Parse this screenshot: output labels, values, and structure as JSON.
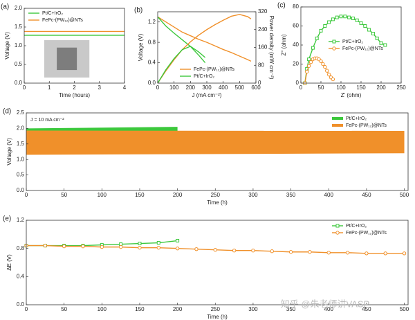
{
  "chart_data": [
    {
      "type": "line",
      "panel_label": "(a)",
      "xlabel": "Time (hours)",
      "ylabel": "Voltage (V)",
      "xlim": [
        0,
        4
      ],
      "xticks": [
        0,
        1,
        2,
        3,
        4
      ],
      "ylim": [
        0,
        2
      ],
      "yticks": [
        {
          "value": 0,
          "label": "0.0"
        },
        0.5,
        {
          "value": 1,
          "label": "1.0"
        },
        1.5,
        {
          "value": 2,
          "label": "2.0"
        }
      ],
      "legend": "upper left",
      "series": [
        {
          "name": "Pt/C+IrO₂",
          "color": "#3cc83c",
          "x": [
            0,
            1,
            2,
            3,
            4
          ],
          "values": [
            1.28,
            1.28,
            1.28,
            1.28,
            1.28
          ]
        },
        {
          "name": "FePc-(PW₁₂)@NTs",
          "color": "#f0902a",
          "x": [
            0,
            1,
            2,
            3,
            4
          ],
          "values": [
            1.38,
            1.38,
            1.38,
            1.38,
            1.38
          ]
        }
      ]
    },
    {
      "type": "line",
      "panel_label": "(b)",
      "xlabel": "J (mA cm⁻²)",
      "ylabel": "Voltage (V)",
      "y2label": "Power density (mW cm⁻²)",
      "xlim": [
        0,
        600
      ],
      "xticks": [
        0,
        100,
        200,
        300,
        400,
        500,
        600
      ],
      "ylim": [
        0,
        1.4
      ],
      "yticks": [
        {
          "value": 0,
          "label": "0.0"
        },
        0.4,
        0.8,
        1.2
      ],
      "y2lim": [
        0,
        320
      ],
      "y2ticks": [
        0,
        80,
        160,
        240,
        320
      ],
      "legend": "lower right",
      "series": [
        {
          "name": "FePc-(PW₁₂)@NTs",
          "color": "#f0902a",
          "x": [
            0,
            50,
            100,
            150,
            200,
            250,
            300,
            350,
            400,
            450,
            500,
            550,
            570
          ],
          "values": [
            1.3,
            1.2,
            1.1,
            1.0,
            0.93,
            0.86,
            0.8,
            0.73,
            0.66,
            0.6,
            0.53,
            0.46,
            0.43
          ]
        },
        {
          "name": "Pt/C+IrO₂",
          "color": "#3cc83c",
          "x": [
            0,
            50,
            100,
            150,
            200,
            250,
            290
          ],
          "values": [
            1.3,
            1.12,
            0.98,
            0.85,
            0.72,
            0.55,
            0.4
          ]
        },
        {
          "color": "#f0902a",
          "axis": "y2",
          "x": [
            0,
            50,
            100,
            150,
            200,
            250,
            300,
            350,
            400,
            450,
            500,
            550,
            570
          ],
          "values": [
            0,
            55,
            105,
            150,
            185,
            215,
            240,
            262,
            282,
            300,
            308,
            298,
            288
          ]
        },
        {
          "color": "#3cc83c",
          "axis": "y2",
          "x": [
            0,
            50,
            100,
            150,
            200,
            250,
            290
          ],
          "values": [
            0,
            60,
            110,
            150,
            165,
            140,
            115
          ]
        }
      ]
    },
    {
      "type": "line",
      "panel_label": "(c)",
      "xlabel": "Z' (ohm)",
      "ylabel": "Z'' (ohm)",
      "xlim": [
        0,
        250
      ],
      "xticks": [
        0,
        50,
        100,
        150,
        200,
        250
      ],
      "ylim": [
        0,
        80
      ],
      "yticks": [
        0,
        20,
        40,
        60,
        80
      ],
      "legend": "center right",
      "series": [
        {
          "name": "Pt/C+IrO₂",
          "color": "#3cc83c",
          "marker": "square",
          "x": [
            10,
            15,
            20,
            30,
            40,
            50,
            60,
            70,
            80,
            90,
            100,
            110,
            120,
            130,
            140,
            150,
            160,
            170,
            180,
            190,
            200,
            210
          ],
          "values": [
            0,
            15,
            25,
            37,
            47,
            55,
            60,
            64,
            67,
            69,
            70,
            70,
            69,
            68,
            66,
            63,
            60,
            56,
            52,
            47,
            42,
            40
          ]
        },
        {
          "name": "FePc-(PW₁₂)@NTs",
          "color": "#f0902a",
          "marker": "circle",
          "x": [
            10,
            15,
            20,
            25,
            30,
            35,
            40,
            45,
            50,
            55,
            60,
            65,
            70,
            75,
            80
          ],
          "values": [
            0,
            12,
            18,
            22,
            25,
            26,
            26,
            25,
            23,
            20,
            17,
            13,
            9,
            6,
            4
          ]
        }
      ]
    },
    {
      "type": "band",
      "panel_label": "(d)",
      "xlabel": "Time (h)",
      "ylabel": "Voltage (V)",
      "annotation": "J = 10 mA cm⁻²",
      "xlim": [
        0,
        505
      ],
      "xticks": [
        0,
        50,
        100,
        150,
        200,
        250,
        300,
        350,
        400,
        450,
        500
      ],
      "ylim": [
        0,
        2.5
      ],
      "yticks": [
        {
          "value": 0,
          "label": "0.0"
        },
        0.5,
        {
          "value": 1,
          "label": "1.0"
        },
        1.5,
        {
          "value": 2,
          "label": "2.0"
        },
        2.5
      ],
      "legend": "upper right",
      "series": [
        {
          "name": "Pt/C+IrO₂",
          "color": "#3cc83c",
          "x": [
            0,
            200
          ],
          "high": [
            2.0,
            2.05
          ],
          "low": [
            1.2,
            1.2
          ]
        },
        {
          "name": "FePc-(PW₁₂)@NTs",
          "color": "#f0902a",
          "x": [
            0,
            500
          ],
          "high": [
            1.93,
            1.92
          ],
          "low": [
            1.15,
            1.2
          ]
        }
      ]
    },
    {
      "type": "line",
      "panel_label": "(e)",
      "xlabel": "Time (h)",
      "ylabel": "ΔE (V)",
      "xlim": [
        0,
        505
      ],
      "xticks": [
        0,
        50,
        100,
        150,
        200,
        250,
        300,
        350,
        400,
        450,
        500
      ],
      "ylim": [
        0,
        1.2
      ],
      "yticks": [
        {
          "value": 0,
          "label": "0.0"
        },
        0.4,
        0.8,
        1.2
      ],
      "legend": "upper right",
      "series": [
        {
          "name": "Pt/C+IrO₂",
          "color": "#3cc83c",
          "marker": "square",
          "x": [
            0,
            25,
            50,
            75,
            100,
            125,
            150,
            175,
            200
          ],
          "values": [
            0.84,
            0.84,
            0.84,
            0.84,
            0.85,
            0.86,
            0.87,
            0.88,
            0.91
          ]
        },
        {
          "name": "FePc-(PW₁₂)@NTs",
          "color": "#f0902a",
          "marker": "circle",
          "x": [
            0,
            25,
            50,
            75,
            100,
            125,
            150,
            175,
            200,
            225,
            250,
            275,
            300,
            325,
            350,
            375,
            400,
            425,
            450,
            475,
            500
          ],
          "values": [
            0.84,
            0.84,
            0.83,
            0.83,
            0.82,
            0.82,
            0.81,
            0.81,
            0.8,
            0.79,
            0.78,
            0.77,
            0.77,
            0.76,
            0.75,
            0.75,
            0.74,
            0.74,
            0.73,
            0.73,
            0.73
          ]
        }
      ]
    }
  ],
  "watermark": "知乎 @朱老师讲VASP"
}
